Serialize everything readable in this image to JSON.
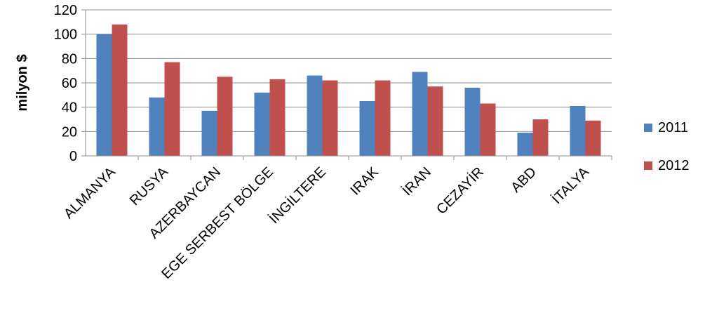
{
  "chart_data": {
    "type": "bar",
    "title": "",
    "xlabel": "",
    "ylabel": "milyon $",
    "ylim": [
      0,
      120
    ],
    "yticks": [
      "0",
      "20",
      "40",
      "60",
      "80",
      "100",
      "120"
    ],
    "grid": true,
    "legend_position": "right",
    "categories": [
      "ALMANYA",
      "RUSYA",
      "AZERBAYCAN",
      "EGE SERBEST BÖLGE",
      "İNGİLTERE",
      "IRAK",
      "İRAN",
      "CEZAYİR",
      "ABD",
      "İTALYA"
    ],
    "series": [
      {
        "name": "2011",
        "color": "#4F81BD",
        "values": [
          100,
          48,
          37,
          52,
          66,
          45,
          69,
          56,
          19,
          41
        ]
      },
      {
        "name": "2012",
        "color": "#C0504D",
        "values": [
          108,
          77,
          65,
          63,
          62,
          62,
          57,
          43,
          30,
          29
        ]
      }
    ]
  }
}
